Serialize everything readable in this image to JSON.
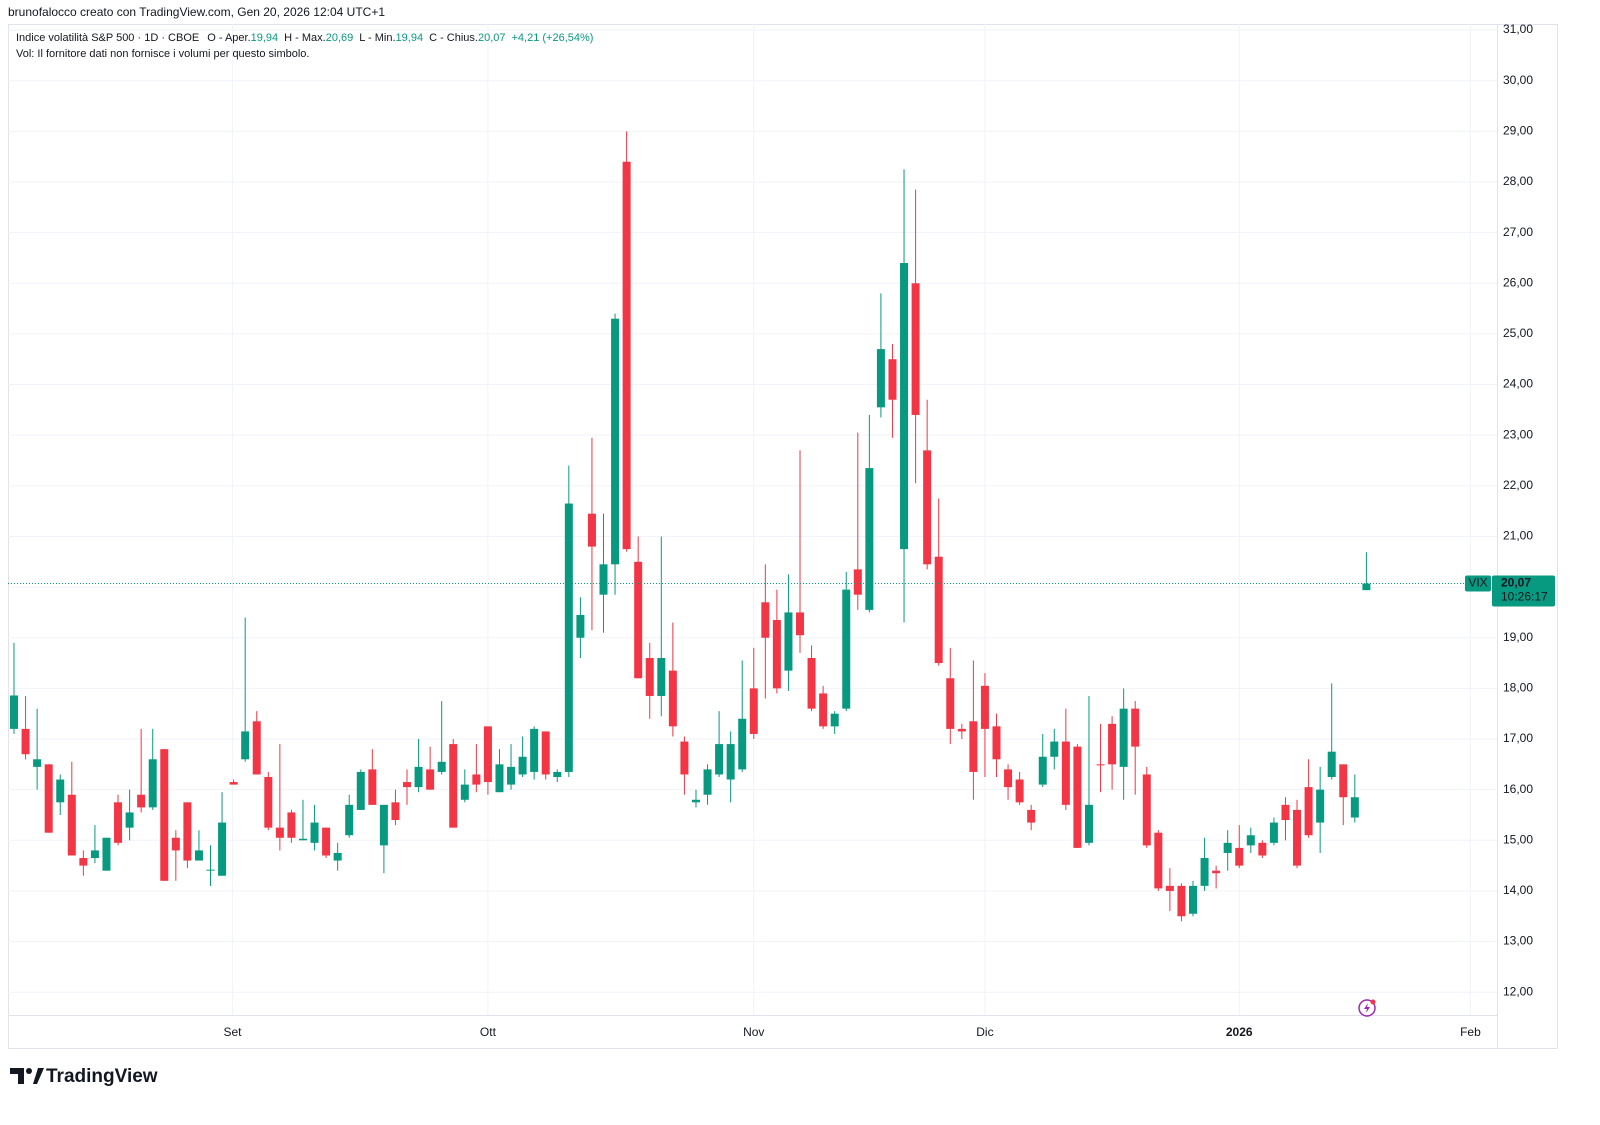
{
  "header": {
    "credit": "brunofalocco creato con TradingView.com, Gen 20, 2026 12:04 UTC+1",
    "legend": {
      "symbol": "Indice volatilità S&P 500 · 1D · CBOE",
      "items": [
        {
          "label": "O - Aper.",
          "value": "19,94"
        },
        {
          "label": "H - Max.",
          "value": "20,69"
        },
        {
          "label": "L - Min.",
          "value": "19,94"
        },
        {
          "label": "C - Chius.",
          "value": "20,07"
        }
      ],
      "change": "+4,21 (+26,54%)"
    },
    "volume_note": "Vol: Il fornitore dati non fornisce i volumi per questo simbolo."
  },
  "chart_data": {
    "type": "candlestick",
    "x": [
      0,
      1,
      2,
      3,
      4,
      5,
      6,
      7,
      8,
      9,
      10,
      11,
      12,
      13,
      14,
      15,
      16,
      17,
      18,
      19,
      20,
      21,
      22,
      23,
      24,
      25,
      26,
      27,
      28,
      29,
      30,
      31,
      32,
      33,
      34,
      35,
      36,
      37,
      38,
      39,
      40,
      41,
      42,
      43,
      44,
      45,
      46,
      47,
      48,
      49,
      50,
      51,
      52,
      53,
      54,
      55,
      56,
      57,
      58,
      59,
      60,
      61,
      62,
      63,
      64,
      65,
      66,
      67,
      68,
      69,
      70,
      71,
      72,
      73,
      74,
      75,
      76,
      77,
      78,
      79,
      80,
      81,
      82,
      83,
      84,
      85,
      86,
      87,
      88,
      89,
      90,
      91,
      92,
      93,
      94,
      95,
      96,
      97,
      98,
      99,
      100,
      101,
      102,
      103,
      104,
      105,
      106,
      107,
      108,
      109,
      110,
      111,
      112,
      113,
      114,
      115,
      116,
      117
    ],
    "open": [
      17.2,
      17.2,
      16.45,
      16.5,
      15.75,
      15.9,
      14.65,
      14.65,
      14.4,
      15.75,
      15.25,
      15.9,
      15.65,
      16.8,
      15.05,
      15.75,
      14.6,
      14.4,
      14.3,
      16.15,
      16.6,
      17.35,
      16.25,
      15.25,
      15.55,
      15.0,
      14.95,
      15.25,
      14.6,
      15.1,
      15.6,
      16.4,
      14.9,
      15.75,
      16.15,
      16.05,
      16.4,
      16.35,
      16.9,
      15.8,
      16.3,
      17.25,
      15.95,
      16.1,
      16.3,
      16.35,
      17.15,
      16.25,
      16.35,
      19.0,
      21.45,
      19.85,
      20.45,
      28.4,
      20.5,
      18.6,
      17.85,
      18.35,
      16.95,
      15.75,
      15.9,
      16.3,
      16.2,
      16.4,
      18.0,
      19.7,
      19.35,
      18.35,
      19.5,
      18.6,
      17.9,
      17.25,
      17.6,
      20.35,
      19.55,
      23.55,
      24.5,
      20.75,
      26.0,
      22.7,
      20.6,
      18.2,
      17.2,
      17.35,
      18.05,
      17.25,
      16.4,
      16.2,
      15.6,
      16.1,
      16.65,
      16.95,
      16.85,
      14.95,
      16.5,
      17.3,
      16.45,
      17.6,
      16.3,
      15.15,
      14.1,
      14.1,
      13.55,
      14.1,
      14.4,
      14.75,
      14.85,
      14.9,
      14.95,
      14.95,
      15.7,
      15.6,
      16.05,
      15.35,
      16.25,
      16.5,
      15.45,
      19.94
    ],
    "high": [
      18.9,
      17.85,
      17.6,
      16.5,
      16.3,
      16.55,
      14.8,
      15.3,
      15.05,
      15.9,
      16.0,
      17.2,
      17.2,
      16.8,
      15.2,
      15.75,
      15.2,
      14.9,
      15.95,
      16.2,
      19.4,
      17.55,
      16.35,
      16.9,
      15.6,
      15.8,
      15.7,
      15.25,
      14.95,
      15.9,
      16.4,
      16.8,
      15.7,
      16.0,
      16.4,
      17.0,
      16.85,
      17.75,
      17.0,
      16.4,
      16.9,
      17.25,
      16.8,
      16.9,
      17.05,
      17.25,
      17.15,
      16.4,
      22.4,
      19.8,
      22.95,
      21.45,
      25.4,
      29.0,
      21.0,
      18.9,
      21.0,
      19.3,
      17.05,
      16.0,
      16.5,
      17.55,
      17.15,
      18.55,
      18.8,
      20.45,
      19.95,
      20.25,
      22.7,
      18.85,
      18.05,
      17.55,
      20.3,
      23.05,
      23.4,
      25.8,
      24.8,
      28.25,
      27.85,
      23.7,
      21.75,
      18.8,
      17.3,
      18.55,
      18.3,
      17.5,
      16.5,
      16.35,
      15.7,
      17.1,
      17.2,
      17.6,
      16.9,
      17.85,
      17.3,
      17.45,
      18.0,
      17.75,
      16.45,
      15.2,
      14.45,
      14.15,
      14.2,
      15.05,
      14.5,
      15.2,
      15.3,
      15.25,
      15.0,
      15.45,
      15.85,
      15.8,
      16.6,
      16.45,
      18.1,
      16.5,
      16.3,
      20.69
    ],
    "low": [
      17.1,
      16.6,
      16.0,
      15.15,
      15.5,
      14.7,
      14.3,
      14.55,
      14.4,
      14.9,
      15.0,
      15.55,
      15.6,
      14.2,
      14.2,
      14.45,
      14.6,
      14.1,
      14.3,
      16.1,
      16.55,
      16.3,
      15.2,
      14.8,
      14.95,
      15.0,
      14.8,
      14.65,
      14.4,
      15.05,
      15.6,
      15.7,
      14.35,
      15.3,
      15.7,
      15.95,
      16.0,
      16.3,
      15.25,
      15.75,
      15.95,
      15.9,
      15.95,
      16.0,
      16.25,
      16.2,
      16.2,
      16.15,
      16.25,
      18.6,
      19.15,
      19.1,
      19.85,
      20.7,
      18.2,
      17.4,
      17.45,
      17.05,
      15.9,
      15.65,
      15.7,
      16.25,
      15.75,
      16.35,
      17.0,
      17.8,
      17.9,
      17.95,
      18.7,
      17.55,
      17.2,
      17.1,
      17.55,
      19.55,
      19.5,
      23.35,
      22.95,
      19.3,
      22.05,
      20.35,
      18.45,
      16.9,
      17.0,
      15.8,
      16.25,
      16.25,
      15.8,
      15.7,
      15.2,
      16.05,
      16.4,
      15.6,
      14.85,
      14.9,
      15.95,
      16.0,
      15.8,
      15.9,
      14.85,
      14.0,
      13.6,
      13.4,
      13.5,
      14.0,
      14.05,
      14.4,
      14.45,
      14.75,
      14.65,
      14.9,
      15.0,
      14.45,
      15.05,
      14.75,
      16.2,
      15.3,
      15.35,
      19.94
    ],
    "close": [
      17.86,
      16.7,
      16.6,
      15.15,
      16.2,
      14.7,
      14.5,
      14.8,
      15.05,
      14.95,
      15.55,
      15.65,
      16.6,
      14.2,
      14.8,
      14.6,
      14.8,
      14.42,
      15.35,
      16.1,
      17.15,
      16.3,
      15.25,
      15.05,
      15.05,
      15.03,
      15.35,
      14.7,
      14.75,
      15.7,
      16.35,
      15.7,
      15.7,
      15.4,
      16.05,
      16.45,
      16.0,
      16.55,
      15.25,
      16.1,
      16.1,
      16.15,
      16.5,
      16.45,
      16.65,
      17.2,
      16.3,
      16.35,
      21.65,
      19.45,
      20.8,
      20.45,
      25.3,
      20.75,
      18.2,
      17.85,
      18.6,
      17.25,
      16.3,
      15.8,
      16.4,
      16.9,
      16.9,
      17.4,
      17.1,
      19.0,
      18.0,
      19.5,
      19.05,
      17.6,
      17.25,
      17.5,
      19.95,
      19.85,
      22.35,
      24.7,
      23.7,
      26.4,
      23.4,
      20.45,
      18.5,
      17.2,
      17.15,
      16.35,
      17.2,
      16.6,
      16.05,
      15.75,
      15.35,
      16.65,
      16.95,
      15.7,
      14.85,
      15.7,
      16.48,
      16.5,
      17.6,
      16.85,
      14.9,
      14.05,
      14.0,
      13.5,
      14.1,
      14.65,
      14.35,
      14.95,
      14.5,
      15.1,
      14.7,
      15.35,
      15.4,
      14.5,
      15.1,
      16.0,
      16.75,
      15.85,
      15.85,
      20.07
    ],
    "up_color": "#089981",
    "down_color": "#f23645",
    "xlim": [
      -0.52,
      128.3
    ],
    "ylim": [
      11.55,
      31.12
    ],
    "xticks": [
      {
        "value": 18.9,
        "label": "Set"
      },
      {
        "value": 41,
        "label": "Ott"
      },
      {
        "value": 64,
        "label": "Nov"
      },
      {
        "value": 84,
        "label": "Dic"
      },
      {
        "value": 106,
        "label": "2026"
      },
      {
        "value": 126,
        "label": "Feb"
      }
    ],
    "yticks": [
      {
        "value": 12,
        "label": "12,00"
      },
      {
        "value": 13,
        "label": "13,00"
      },
      {
        "value": 14,
        "label": "14,00"
      },
      {
        "value": 15,
        "label": "15,00"
      },
      {
        "value": 16,
        "label": "16,00"
      },
      {
        "value": 17,
        "label": "17,00"
      },
      {
        "value": 18,
        "label": "18,00"
      },
      {
        "value": 19,
        "label": "19,00"
      },
      {
        "value": 20,
        "label": "20,00"
      },
      {
        "value": 21,
        "label": "21,00"
      },
      {
        "value": 22,
        "label": "22,00"
      },
      {
        "value": 23,
        "label": "23,00"
      },
      {
        "value": 24,
        "label": "24,00"
      },
      {
        "value": 25,
        "label": "25,00"
      },
      {
        "value": 26,
        "label": "26,00"
      },
      {
        "value": 27,
        "label": "27,00"
      },
      {
        "value": 28,
        "label": "28,00"
      },
      {
        "value": 29,
        "label": "29,00"
      },
      {
        "value": 30,
        "label": "30,00"
      },
      {
        "value": 31,
        "label": "31,00"
      }
    ],
    "grid": true,
    "price_label": {
      "symbol": "VIX",
      "price": "20,07",
      "countdown": "10:26:17"
    }
  },
  "footer": {
    "brand": "TradingView"
  }
}
